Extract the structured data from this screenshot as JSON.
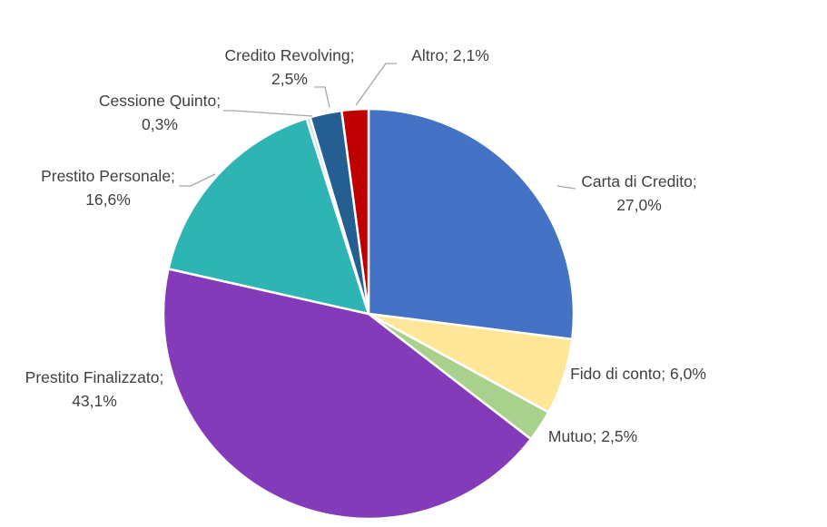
{
  "chart_data": {
    "type": "pie",
    "title": "",
    "slices": [
      {
        "label": "Carta di Credito",
        "value": 27.0,
        "value_text": "27,0%",
        "color": "#4472C4",
        "label_lines": [
          "Carta di Credito;",
          "27,0%"
        ]
      },
      {
        "label": "Fido di conto",
        "value": 6.0,
        "value_text": "6,0%",
        "color": "#FFE699",
        "label_lines": [
          "Fido di conto; 6,0%"
        ]
      },
      {
        "label": "Mutuo",
        "value": 2.5,
        "value_text": "2,5%",
        "color": "#A9D18E",
        "label_lines": [
          "Mutuo; 2,5%"
        ]
      },
      {
        "label": "Prestito Finalizzato",
        "value": 43.1,
        "value_text": "43,1%",
        "color": "#843BBA",
        "label_lines": [
          "Prestito Finalizzato;",
          "43,1%"
        ]
      },
      {
        "label": "Prestito Personale",
        "value": 16.6,
        "value_text": "16,6%",
        "color": "#2EB5B3",
        "label_lines": [
          "Prestito Personale;",
          "16,6%"
        ]
      },
      {
        "label": "Cessione Quinto",
        "value": 0.3,
        "value_text": "0,3%",
        "color": "#B7E3CF",
        "label_lines": [
          "Cessione Quinto;",
          "0,3%"
        ]
      },
      {
        "label": "Credito Revolving",
        "value": 2.5,
        "value_text": "2,5%",
        "color": "#255E91",
        "label_lines": [
          "Credito Revolving;",
          "2,5%"
        ]
      },
      {
        "label": "Altro",
        "value": 2.1,
        "value_text": "2,1%",
        "color": "#C00000",
        "label_lines": [
          "Altro; 2,1%"
        ]
      }
    ],
    "start_angle": "12 o'clock",
    "direction": "clockwise",
    "legend": "none",
    "labels": "outside with leader lines",
    "background": "#FFFFFF",
    "label_color": "#404040",
    "leader_color": "#A6A6A6"
  }
}
